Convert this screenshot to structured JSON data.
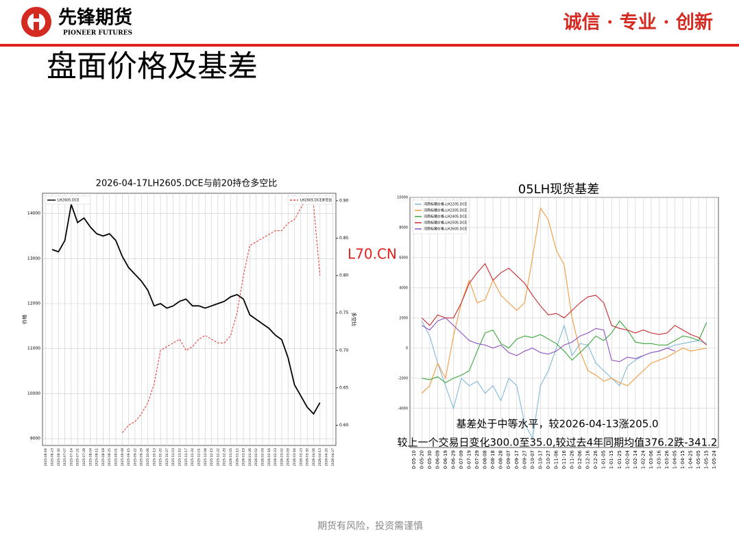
{
  "header": {
    "logo_cn": "先锋期货",
    "logo_en": "PIONEER FUTURES",
    "slogan": "诚信 · 专业 · 创新"
  },
  "slide_title": "盘面价格及基差",
  "watermark": "L70.CN",
  "footer": "期货有风险，投资需谨慎",
  "chart_data": [
    {
      "type": "line",
      "title": "2026-04-17LH2605.DCE与前20持仓多空比",
      "y_label": "价格",
      "y2_label": "多空比",
      "grid": true,
      "categories": [
        "2025-06-16",
        "2025-06-23",
        "2025-06-30",
        "2025-07-07",
        "2025-07-14",
        "2025-07-21",
        "2025-07-28",
        "2025-08-04",
        "2025-08-11",
        "2025-08-18",
        "2025-08-25",
        "2025-09-01",
        "2025-09-08",
        "2025-09-15",
        "2025-09-22",
        "2025-09-29",
        "2025-10-06",
        "2025-10-13",
        "2025-10-20",
        "2025-10-27",
        "2025-11-03",
        "2025-11-10",
        "2025-11-17",
        "2025-11-24",
        "2025-12-01",
        "2025-12-08",
        "2025-12-15",
        "2025-12-22",
        "2025-12-29",
        "2026-01-05",
        "2026-01-12",
        "2026-01-19",
        "2026-01-26",
        "2026-02-02",
        "2026-02-09",
        "2026-02-16",
        "2026-02-23",
        "2026-03-02",
        "2026-03-09",
        "2026-03-16",
        "2026-03-23",
        "2026-03-30",
        "2026-04-06",
        "2026-04-13",
        "2026-04-20",
        "2026-04-27"
      ],
      "ylim": [
        8850,
        14450
      ],
      "yticks": [
        9000,
        10000,
        11000,
        12000,
        13000,
        14000
      ],
      "y2lim": [
        0.573,
        0.91
      ],
      "y2ticks": [
        {
          "value": 0.6,
          "label": "0.60"
        },
        {
          "value": 0.65,
          "label": "0.65"
        },
        {
          "value": 0.7,
          "label": "0.70"
        },
        {
          "value": 0.75,
          "label": "0.75"
        },
        {
          "value": 0.8,
          "label": "0.80"
        },
        {
          "value": 0.85,
          "label": "0.85"
        },
        {
          "value": 0.9,
          "label": "0.90"
        }
      ],
      "series": [
        {
          "name": "LH2605.DCE",
          "color": "#000000",
          "legend": "upper left",
          "values": [
            null,
            13200,
            13150,
            13400,
            14200,
            13800,
            13900,
            13700,
            13550,
            13500,
            13550,
            13400,
            13050,
            12800,
            12650,
            12500,
            12300,
            11950,
            12000,
            11900,
            11950,
            12050,
            12100,
            11950,
            11950,
            11900,
            11950,
            12000,
            12050,
            12150,
            12200,
            12100,
            11750,
            11650,
            11550,
            11450,
            11300,
            11200,
            10800,
            10200,
            9950,
            9700,
            9550,
            9800,
            null,
            null
          ]
        },
        {
          "name": "LH2605.DCE多空比",
          "color": "#e8423a",
          "axis": "y2",
          "linestyle": "dashed",
          "legend": "upper right",
          "values": [
            null,
            null,
            null,
            null,
            null,
            null,
            null,
            null,
            null,
            null,
            null,
            null,
            0.59,
            0.6,
            0.605,
            0.615,
            0.63,
            0.655,
            0.7,
            0.705,
            0.71,
            0.715,
            0.7,
            0.705,
            0.715,
            0.72,
            0.715,
            0.71,
            0.71,
            0.72,
            0.75,
            0.8,
            0.84,
            0.845,
            0.85,
            0.855,
            0.86,
            0.86,
            0.87,
            0.875,
            0.89,
            0.905,
            0.895,
            0.8,
            null,
            null
          ]
        }
      ]
    },
    {
      "type": "line",
      "title": "05LH现货基差",
      "grid": true,
      "legend": "upper left",
      "annotations": [
        "基差处于中等水平，较2026-04-13涨205.0",
        "较上一个交易日变化300.0至35.0,较过去4年同期均值376.2跌-341.2"
      ],
      "categories": [
        "0-05-10",
        "0-05-20",
        "0-05-30",
        "0-06-09",
        "0-06-19",
        "0-06-29",
        "0-07-09",
        "0-07-19",
        "0-07-29",
        "0-08-08",
        "0-08-18",
        "0-08-28",
        "0-09-07",
        "0-09-17",
        "0-09-27",
        "0-10-07",
        "0-10-17",
        "0-10-27",
        "0-11-06",
        "0-11-16",
        "0-11-26",
        "0-12-06",
        "0-12-16",
        "0-12-26",
        "1-01-05",
        "1-01-15",
        "1-01-25",
        "1-02-04",
        "1-02-14",
        "1-02-24",
        "1-03-06",
        "1-03-16",
        "1-03-26",
        "1-04-05",
        "1-04-15",
        "1-04-25",
        "1-05-05",
        "1-05-15",
        "1-05-24"
      ],
      "ylim": [
        -6600,
        10000
      ],
      "yticks": [
        -4000,
        -2000,
        0,
        2000,
        4000,
        6000,
        8000,
        10000
      ],
      "series": [
        {
          "name": "河南标猪价格-LH2205.DCE",
          "color": "#7fb8d8",
          "values": [
            null,
            1800,
            800,
            -1000,
            -2500,
            -4000,
            -2000,
            -2500,
            -2200,
            -3000,
            -2500,
            -3500,
            -2000,
            -2500,
            -5000,
            -6000,
            -2500,
            -1500,
            0,
            1500,
            -500,
            300,
            200,
            -1000,
            -1500,
            -2000,
            -2500,
            -1200,
            -800,
            -500,
            -300,
            -200,
            0,
            200,
            300,
            400,
            500,
            300,
            null
          ]
        },
        {
          "name": "河南标猪价格-LH2305.DCE",
          "color": "#f39a3e",
          "values": [
            null,
            -3000,
            -2500,
            -1000,
            -2000,
            800,
            3000,
            4500,
            3000,
            3200,
            4500,
            3500,
            3000,
            2500,
            3000,
            6000,
            9300,
            8500,
            6500,
            5500,
            2000,
            -200,
            -1500,
            -1800,
            -2200,
            -2000,
            -2300,
            -2500,
            -2000,
            -1500,
            -1000,
            -800,
            -600,
            -300,
            0,
            -200,
            -100,
            0,
            null
          ]
        },
        {
          "name": "河南标猪价格-LH2405.DCE",
          "color": "#3aa63a",
          "values": [
            null,
            -2000,
            -2100,
            -1900,
            -2300,
            -2000,
            -1800,
            -1500,
            -200,
            1000,
            1200,
            300,
            0,
            600,
            800,
            700,
            900,
            600,
            300,
            -200,
            -800,
            -300,
            200,
            800,
            500,
            1000,
            1800,
            1200,
            400,
            300,
            300,
            200,
            200,
            500,
            800,
            700,
            500,
            1700,
            null
          ]
        },
        {
          "name": "河南标猪价格-LH2505.DCE",
          "color": "#c8282c",
          "values": [
            null,
            2000,
            1500,
            2200,
            2000,
            2000,
            3000,
            4300,
            5000,
            5600,
            4500,
            5000,
            5300,
            4800,
            4300,
            3500,
            2800,
            2200,
            2300,
            2000,
            2500,
            3000,
            3400,
            3500,
            3000,
            1500,
            1300,
            1200,
            1000,
            1200,
            1000,
            900,
            1000,
            1500,
            1200,
            900,
            700,
            200,
            null
          ]
        },
        {
          "name": "河南标猪价格-LH2605.DCE",
          "color": "#8e4fc2",
          "values": [
            null,
            1500,
            1200,
            1800,
            2000,
            1500,
            1000,
            500,
            300,
            200,
            0,
            200,
            -300,
            -500,
            -200,
            0,
            -300,
            -400,
            -200,
            200,
            400,
            800,
            1000,
            1300,
            1200,
            -800,
            -900,
            -600,
            -700,
            -500,
            -300,
            -200,
            0,
            -200,
            null,
            null,
            null,
            null,
            null
          ]
        }
      ]
    }
  ]
}
